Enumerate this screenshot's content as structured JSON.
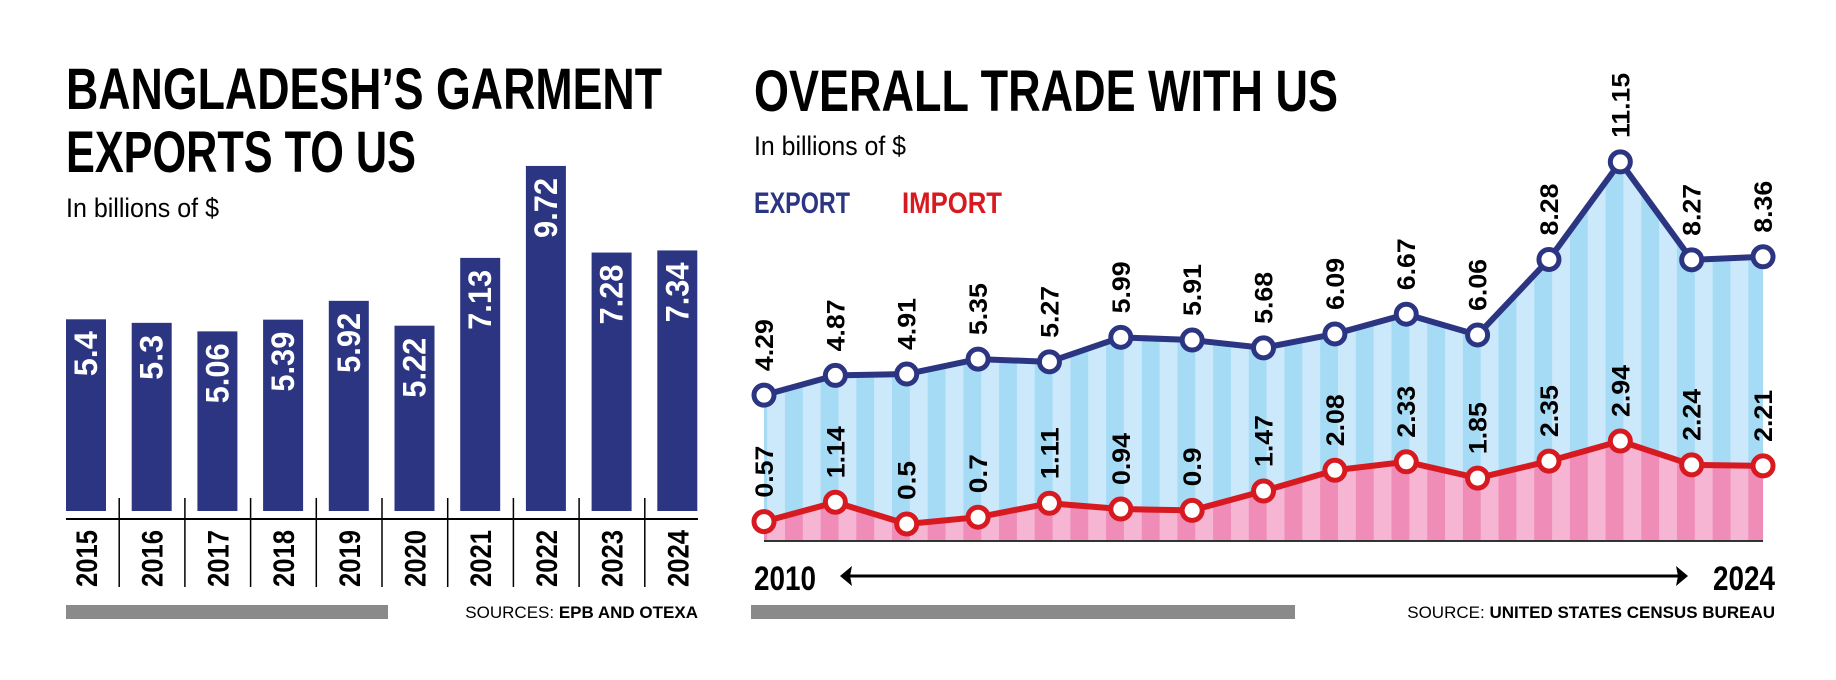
{
  "chart_data": [
    {
      "type": "bar",
      "title_line1": "BANGLADESH’S GARMENT",
      "title_line2": "EXPORTS TO US",
      "subtitle": "In billions of $",
      "categories": [
        "2015",
        "2016",
        "2017",
        "2018",
        "2019",
        "2020",
        "2021",
        "2022",
        "2023",
        "2024"
      ],
      "values": [
        5.4,
        5.3,
        5.06,
        5.39,
        5.92,
        5.22,
        7.13,
        9.72,
        7.28,
        7.34
      ],
      "value_labels": [
        "5.4",
        "5.3",
        "5.06",
        "5.39",
        "5.92",
        "5.22",
        "7.13",
        "9.72",
        "7.28",
        "7.34"
      ],
      "ylim": [
        0,
        10
      ],
      "source_label": "SOURCES:",
      "source_value": "EPB AND OTEXA",
      "color": "#2b3582"
    },
    {
      "type": "line",
      "title": "OVERALL TRADE WITH US",
      "subtitle": "In billions of $",
      "x": [
        2010,
        2011,
        2012,
        2013,
        2014,
        2015,
        2016,
        2017,
        2018,
        2019,
        2020,
        2021,
        2022,
        2023,
        2024
      ],
      "x_start_label": "2010",
      "x_end_label": "2024",
      "ylim": [
        0,
        12
      ],
      "series": [
        {
          "name": "EXPORT",
          "color": "#2b3582",
          "fill": [
            "#a6dbf6",
            "#cbe9fb"
          ],
          "values": [
            4.29,
            4.87,
            4.91,
            5.35,
            5.27,
            5.99,
            5.91,
            5.68,
            6.09,
            6.67,
            6.06,
            8.28,
            11.15,
            8.27,
            8.36
          ],
          "labels": [
            "4.29",
            "4.87",
            "4.91",
            "5.35",
            "5.27",
            "5.99",
            "5.91",
            "5.68",
            "6.09",
            "6.67",
            "6.06",
            "8.28",
            "11.15",
            "8.27",
            "8.36"
          ]
        },
        {
          "name": "IMPORT",
          "color": "#d71920",
          "fill": [
            "#ef8cb8",
            "#f5b5d3"
          ],
          "values": [
            0.57,
            1.14,
            0.5,
            0.7,
            1.11,
            0.94,
            0.9,
            1.47,
            2.08,
            2.33,
            1.85,
            2.35,
            2.94,
            2.24,
            2.21
          ],
          "labels": [
            "0.57",
            "1.14",
            "0.5",
            "0.7",
            "1.11",
            "0.94",
            "0.9",
            "1.47",
            "2.08",
            "2.33",
            "1.85",
            "2.35",
            "2.94",
            "2.24",
            "2.21"
          ]
        }
      ],
      "source_label": "SOURCE:",
      "source_value": "UNITED STATES CENSUS BUREAU"
    }
  ]
}
